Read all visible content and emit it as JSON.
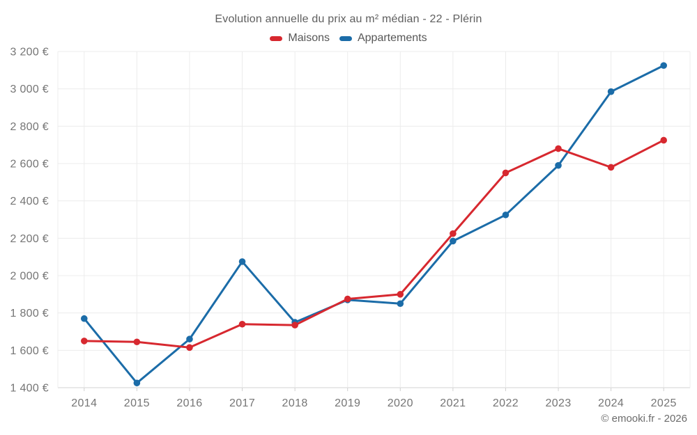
{
  "title": "Evolution annuelle du prix au m² médian - 22 - Plérin",
  "footer": {
    "label": "© emooki.fr - 2026"
  },
  "colors": {
    "maisons": "#d7282f",
    "appartements": "#1b6ca8",
    "grid": "#ececec",
    "axis_line": "#d0d0d0",
    "axis_text": "#757575",
    "title_text": "#5e5e5e"
  },
  "chart_data": {
    "type": "line",
    "title": "Evolution annuelle du prix au m² médian - 22 - Plérin",
    "x": [
      "2014",
      "2015",
      "2016",
      "2017",
      "2018",
      "2019",
      "2020",
      "2021",
      "2022",
      "2023",
      "2024",
      "2025"
    ],
    "series": [
      {
        "name": "Maisons",
        "color": "#d7282f",
        "values": [
          1650,
          1645,
          1615,
          1740,
          1735,
          1875,
          1900,
          2225,
          2550,
          2680,
          2580,
          2725
        ]
      },
      {
        "name": "Appartements",
        "color": "#1b6ca8",
        "values": [
          1770,
          1425,
          1660,
          2075,
          1750,
          1870,
          1850,
          2185,
          2325,
          2590,
          2985,
          3125
        ]
      }
    ],
    "ylim": [
      1400,
      3200
    ],
    "y_tick_step": 200,
    "y_ticks": [
      {
        "value": 1400,
        "label": "1 400 €"
      },
      {
        "value": 1600,
        "label": "1 600 €"
      },
      {
        "value": 1800,
        "label": "1 800 €"
      },
      {
        "value": 2000,
        "label": "2 000 €"
      },
      {
        "value": 2200,
        "label": "2 200 €"
      },
      {
        "value": 2400,
        "label": "2 400 €"
      },
      {
        "value": 2600,
        "label": "2 600 €"
      },
      {
        "value": 2800,
        "label": "2 800 €"
      },
      {
        "value": 3000,
        "label": "3 000 €"
      },
      {
        "value": 3200,
        "label": "3 200 €"
      }
    ],
    "grid": true,
    "legend_position": "top",
    "xlabel": "",
    "ylabel": ""
  }
}
